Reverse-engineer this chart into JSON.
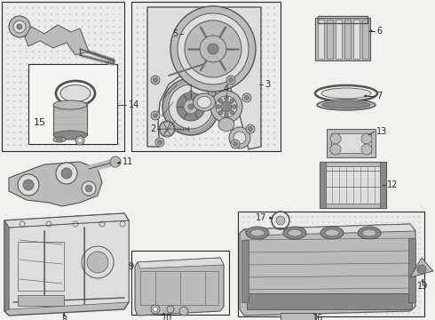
{
  "bg_color": "#ffffff",
  "fig_width": 4.9,
  "fig_height": 3.6,
  "dpi": 100,
  "lc": "#2a2a2a",
  "gray1": "#555555",
  "gray2": "#888888",
  "gray3": "#bbbbbb",
  "gray4": "#dddddd",
  "dot_bg": "#e8e8e4",
  "box_bg": "#f0f0ec"
}
